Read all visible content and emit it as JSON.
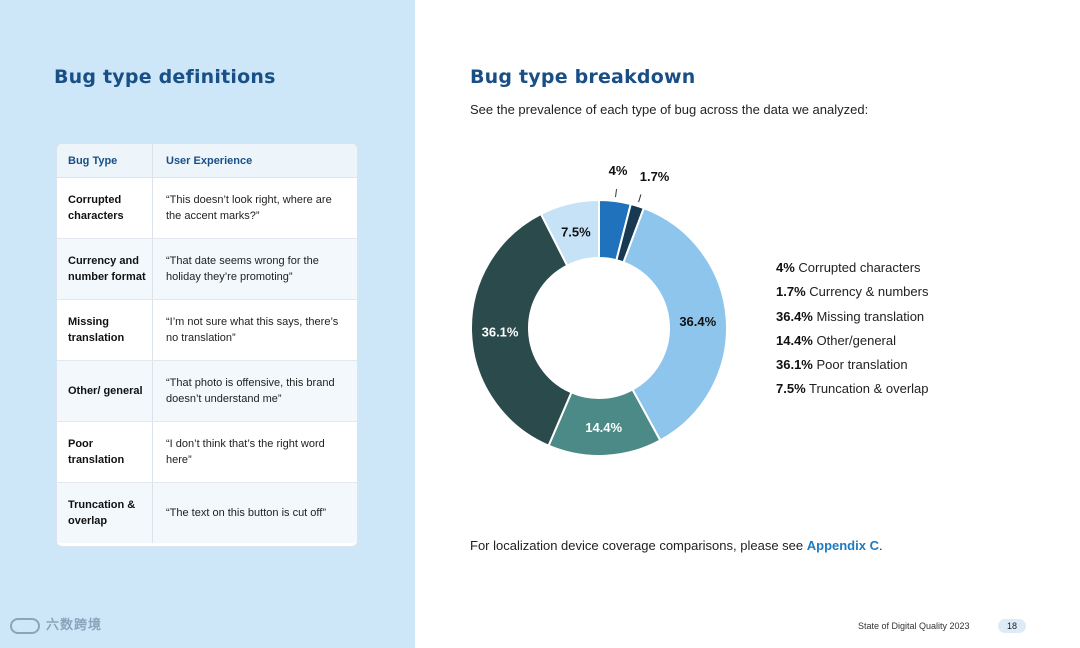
{
  "left": {
    "title": "Bug type definitions",
    "table": {
      "headers": [
        "Bug Type",
        "User Experience"
      ],
      "rows": [
        {
          "type": "Corrupted characters",
          "experience": "“This doesn’t look right, where are the accent marks?”"
        },
        {
          "type": "Currency and number format",
          "experience": "“That date seems wrong for the holiday they’re promoting”"
        },
        {
          "type": "Missing translation",
          "experience": "“I’m not sure what this says, there’s no translation”"
        },
        {
          "type": "Other/ general",
          "experience": "“That photo is offensive, this brand doesn’t understand me”"
        },
        {
          "type": "Poor translation",
          "experience": "“I don’t think that’s the right word here”"
        },
        {
          "type": "Truncation & overlap",
          "experience": "“The text on this button is cut off”"
        }
      ]
    },
    "footer_watermark": "六数跨境"
  },
  "right": {
    "title": "Bug type breakdown",
    "subtitle": "See the prevalence of each type of bug across the data we analyzed:",
    "footnote_text": "For localization device coverage comparisons, please see ",
    "footnote_link": "Appendix C",
    "footnote_end": ".",
    "report_name": "State of Digital Quality 2023",
    "page_number": "18"
  },
  "chart_data": {
    "type": "pie",
    "categories": [
      "Corrupted characters",
      "Currency & numbers",
      "Missing translation",
      "Other/general",
      "Poor translation",
      "Truncation & overlap"
    ],
    "values": [
      4,
      1.7,
      36.4,
      14.4,
      36.1,
      7.5
    ],
    "labels": [
      "4%",
      "1.7%",
      "36.4%",
      "14.4%",
      "36.1%",
      "7.5%"
    ],
    "colors": [
      "#1f72bb",
      "#173a52",
      "#8ec5ec",
      "#4b8a86",
      "#2b4a4c",
      "#c5e2f7"
    ],
    "label_colors": [
      "#111111",
      "#111111",
      "#111111",
      "#ffffff",
      "#ffffff",
      "#111111"
    ],
    "donut": true,
    "legend_position": "right",
    "legend": [
      {
        "value": "4%",
        "name": "Corrupted characters"
      },
      {
        "value": "1.7%",
        "name": "Currency & numbers"
      },
      {
        "value": "36.4%",
        "name": "Missing translation"
      },
      {
        "value": "14.4%",
        "name": "Other/general"
      },
      {
        "value": "36.1%",
        "name": "Poor translation"
      },
      {
        "value": "7.5%",
        "name": "Truncation & overlap"
      }
    ]
  }
}
